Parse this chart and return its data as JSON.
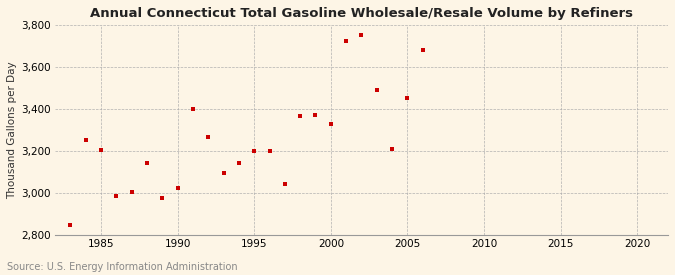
{
  "title": "Annual Connecticut Total Gasoline Wholesale/Resale Volume by Refiners",
  "ylabel": "Thousand Gallons per Day",
  "source": "Source: U.S. Energy Information Administration",
  "background_color": "#fdf5e6",
  "plot_bg_color": "#fdf5e6",
  "marker_color": "#cc0000",
  "years": [
    1983,
    1984,
    1985,
    1986,
    1987,
    1988,
    1989,
    1990,
    1991,
    1992,
    1993,
    1994,
    1995,
    1996,
    1997,
    1998,
    1999,
    2000,
    2001,
    2002,
    2003,
    2004,
    2005,
    2006
  ],
  "values": [
    2845,
    3250,
    3205,
    2985,
    3005,
    3140,
    2975,
    3025,
    3400,
    3265,
    3095,
    3140,
    3200,
    3200,
    3040,
    3365,
    3370,
    3330,
    3725,
    3755,
    3490,
    3210,
    3455,
    3680
  ],
  "xlim": [
    1982,
    2022
  ],
  "ylim": [
    2800,
    3800
  ],
  "xticks": [
    1985,
    1990,
    1995,
    2000,
    2005,
    2010,
    2015,
    2020
  ],
  "yticks": [
    2800,
    3000,
    3200,
    3400,
    3600,
    3800
  ],
  "title_fontsize": 9.5,
  "label_fontsize": 7.5,
  "tick_fontsize": 7.5,
  "source_fontsize": 7.0
}
